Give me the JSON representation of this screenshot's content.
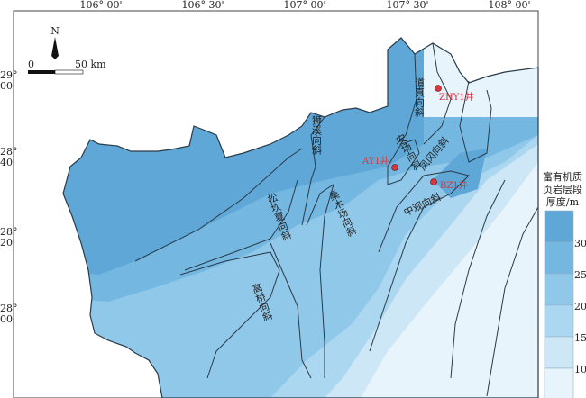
{
  "map": {
    "longitude_ticks": [
      "106° 00'",
      "106° 30'",
      "107° 00'",
      "107° 30'",
      "108° 00'"
    ],
    "latitude_ticks": [
      [
        "29°",
        "00'"
      ],
      [
        "28°",
        "40'"
      ],
      [
        "28°",
        "20'"
      ],
      [
        "28°",
        "00'"
      ]
    ],
    "north_label": "N",
    "scale": {
      "start": "0",
      "end": "50 km"
    },
    "structures": [
      "道真向斜",
      "狮溪向斜",
      "安场向斜",
      "凤冈向斜",
      "桑木场向斜",
      "松坎夏向斜",
      "高桥向斜",
      "中观向斜"
    ],
    "wells": [
      {
        "name": "ZHY1井"
      },
      {
        "name": "AY1井"
      },
      {
        "name": "BZ1井"
      }
    ],
    "well_color": "#d9363e"
  },
  "legend": {
    "title": [
      "富有机质",
      "页岩层段",
      "厚度/m"
    ],
    "ticks": [
      "30",
      "25",
      "20",
      "15",
      "10"
    ],
    "colors": [
      "#5fa7d7",
      "#74b8e2",
      "#90c8ea",
      "#acd7f0",
      "#cde7f6",
      "#e7f4fb"
    ]
  }
}
